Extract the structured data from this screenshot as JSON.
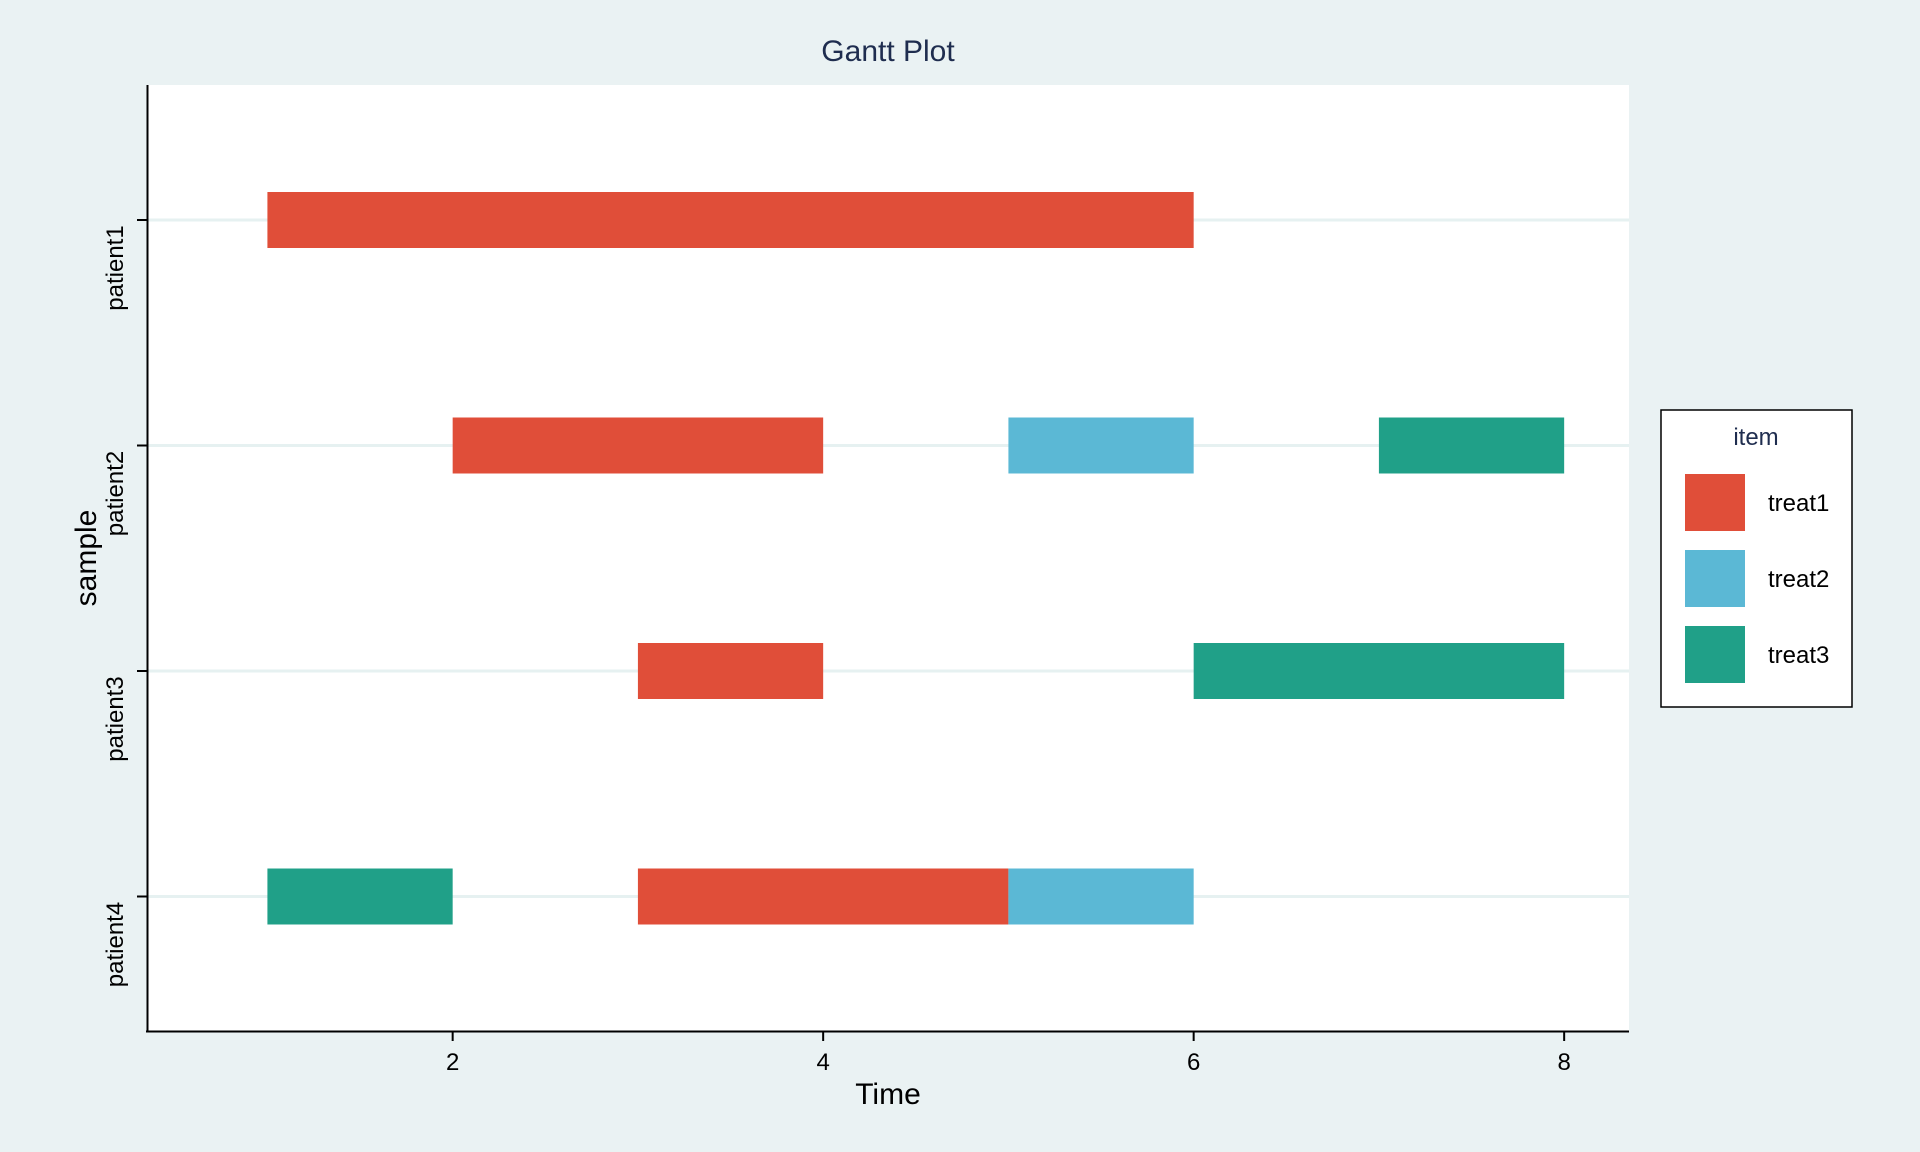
{
  "chart_data": {
    "type": "gantt",
    "title": "Gantt Plot",
    "xlabel": "Time",
    "ylabel": "sample",
    "xlim": [
      0.35,
      8.35
    ],
    "x_ticks": [
      2,
      4,
      6,
      8
    ],
    "categories": [
      "patient1",
      "patient2",
      "patient3",
      "patient4"
    ],
    "grid": "horizontal",
    "legend": {
      "title": "item",
      "position": "right",
      "items": [
        {
          "name": "treat1",
          "color": "#e04e39"
        },
        {
          "name": "treat2",
          "color": "#5bb8d5"
        },
        {
          "name": "treat3",
          "color": "#20a088"
        }
      ]
    },
    "series": [
      {
        "name": "treat1",
        "color": "#e04e39",
        "tasks": [
          {
            "sample": "patient1",
            "start": 1,
            "end": 6
          },
          {
            "sample": "patient2",
            "start": 2,
            "end": 4
          },
          {
            "sample": "patient3",
            "start": 3,
            "end": 4
          },
          {
            "sample": "patient4",
            "start": 3,
            "end": 5
          }
        ]
      },
      {
        "name": "treat2",
        "color": "#5bb8d5",
        "tasks": [
          {
            "sample": "patient2",
            "start": 5,
            "end": 6
          },
          {
            "sample": "patient4",
            "start": 5,
            "end": 6
          }
        ]
      },
      {
        "name": "treat3",
        "color": "#20a088",
        "tasks": [
          {
            "sample": "patient2",
            "start": 7,
            "end": 8
          },
          {
            "sample": "patient3",
            "start": 6,
            "end": 8
          },
          {
            "sample": "patient4",
            "start": 1,
            "end": 2
          }
        ]
      }
    ]
  }
}
